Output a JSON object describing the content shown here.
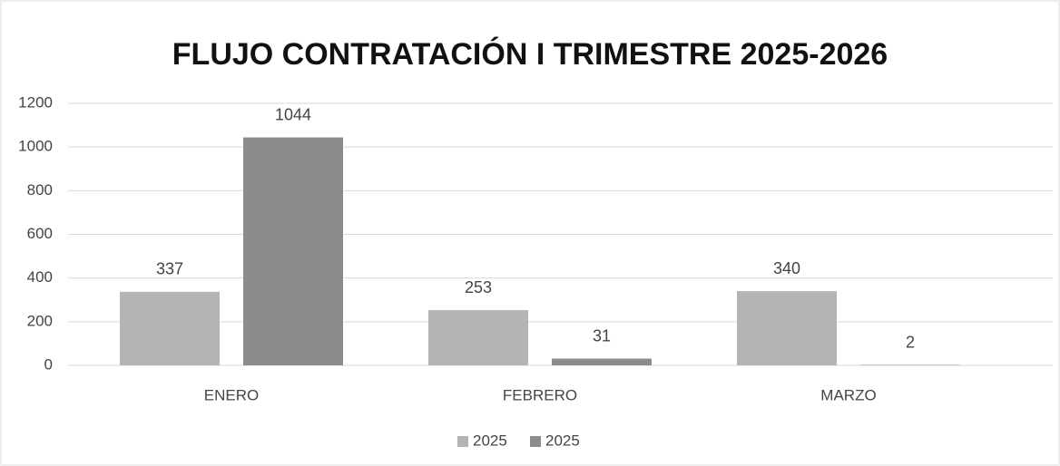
{
  "chart_data": {
    "type": "bar",
    "title": "FLUJO CONTRATACIÓN I TRIMESTRE 2025-2026",
    "categories": [
      "ENERO",
      "FEBRERO",
      "MARZO"
    ],
    "series": [
      {
        "name": "2025",
        "color": "#b4b4b4",
        "values": [
          337,
          253,
          340
        ]
      },
      {
        "name": "2025",
        "color": "#8c8c8c",
        "values": [
          1044,
          31,
          2
        ]
      }
    ],
    "ylim": [
      0,
      1200
    ],
    "yticks": [
      0,
      200,
      400,
      600,
      800,
      1000,
      1200
    ],
    "grid": true,
    "legend": "bottom"
  }
}
